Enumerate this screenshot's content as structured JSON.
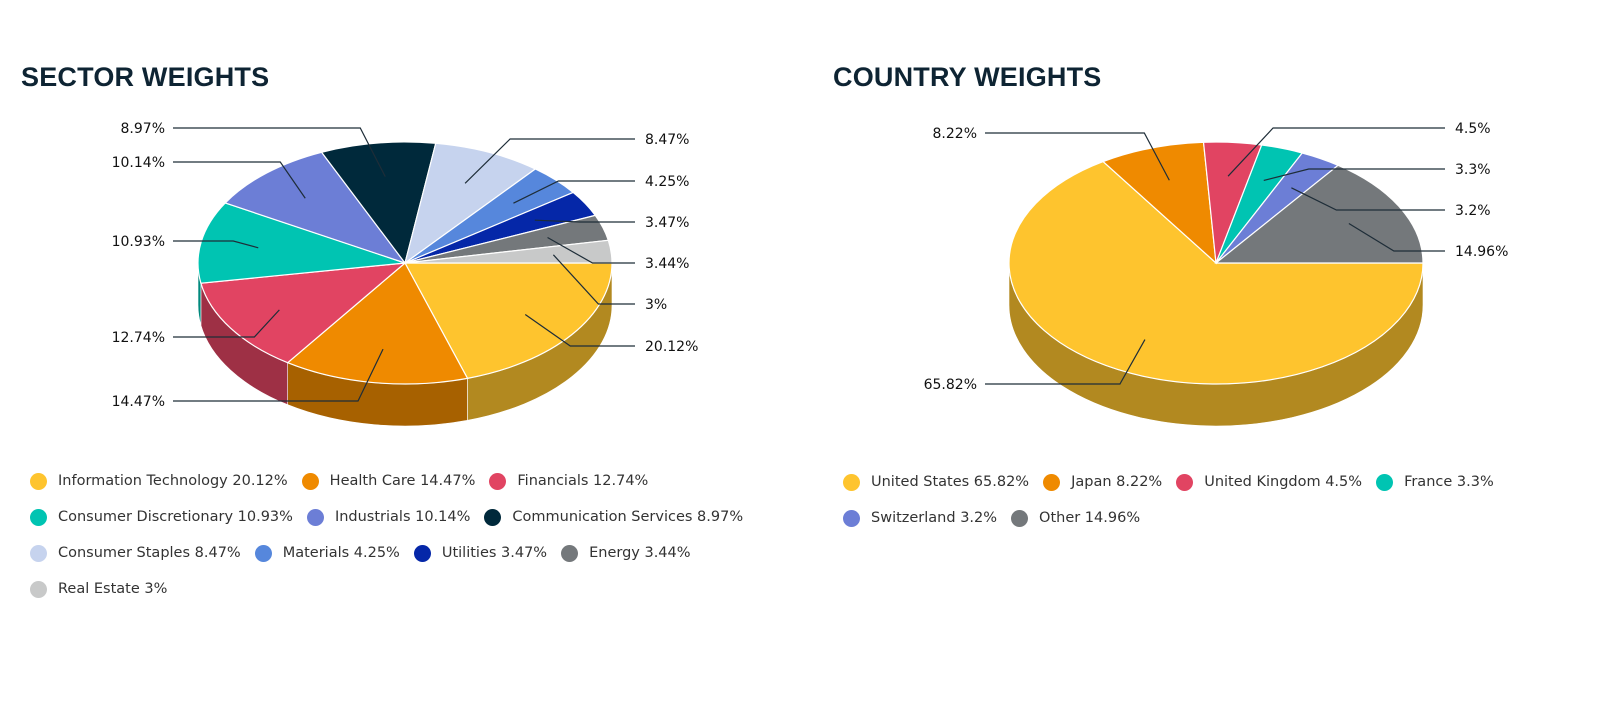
{
  "chart_data": [
    {
      "type": "pie",
      "title": "SECTOR WEIGHTS",
      "categories": [
        "Information Technology",
        "Health Care",
        "Financials",
        "Consumer Discretionary",
        "Industrials",
        "Communication Services",
        "Consumer Staples",
        "Materials",
        "Utilities",
        "Energy",
        "Real Estate"
      ],
      "values": [
        20.12,
        14.47,
        12.74,
        10.93,
        10.14,
        8.97,
        8.47,
        4.25,
        3.47,
        3.44,
        3
      ],
      "data_labels": [
        "20.12%",
        "14.47%",
        "12.74%",
        "10.93%",
        "10.14%",
        "8.97%",
        "8.47%",
        "4.25%",
        "3.47%",
        "3.44%",
        "3%"
      ],
      "legend": [
        "Information Technology 20.12%",
        "Health Care 14.47%",
        "Financials 12.74%",
        "Consumer Discretionary 10.93%",
        "Industrials 10.14%",
        "Communication Services 8.97%",
        "Consumer Staples 8.47%",
        "Materials 4.25%",
        "Utilities 3.47%",
        "Energy 3.44%",
        "Real Estate 3%"
      ],
      "colors": [
        "#fec42e",
        "#ef8a00",
        "#e14462",
        "#00c4b2",
        "#6c7ed6",
        "#00293b",
        "#c6d3ee",
        "#5687dc",
        "#0527a8",
        "#74787b",
        "#c8c9c9"
      ],
      "legend_position": "bottom",
      "style": "3d"
    },
    {
      "type": "pie",
      "title": "COUNTRY WEIGHTS",
      "categories": [
        "United States",
        "Japan",
        "United Kingdom",
        "France",
        "Switzerland",
        "Other"
      ],
      "values": [
        65.82,
        8.22,
        4.5,
        3.3,
        3.2,
        14.96
      ],
      "data_labels": [
        "65.82%",
        "8.22%",
        "4.5%",
        "3.3%",
        "3.2%",
        "14.96%"
      ],
      "legend": [
        "United States 65.82%",
        "Japan 8.22%",
        "United Kingdom 4.5%",
        "France 3.3%",
        "Switzerland 3.2%",
        "Other 14.96%"
      ],
      "colors": [
        "#fec42e",
        "#ef8a00",
        "#e14462",
        "#00c4b2",
        "#6c7ed6",
        "#74787b"
      ],
      "legend_position": "bottom",
      "style": "3d"
    }
  ]
}
